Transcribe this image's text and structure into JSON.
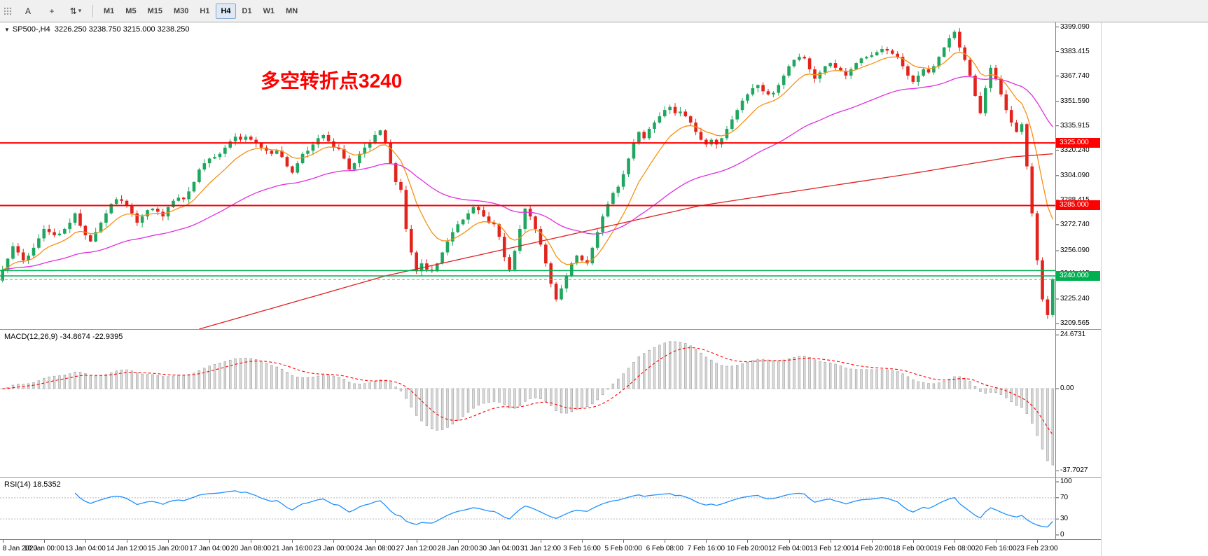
{
  "toolbar": {
    "tool_buttons": [
      {
        "id": "text-tool",
        "label": "A"
      },
      {
        "id": "crosshair-tool",
        "label": "+"
      },
      {
        "id": "objects-tool",
        "label": "⇅",
        "caret": true
      }
    ],
    "timeframes": [
      "M1",
      "M5",
      "M15",
      "M30",
      "H1",
      "H4",
      "D1",
      "W1",
      "MN"
    ],
    "active_timeframe": "H4"
  },
  "icons": {
    "chart_caret": "▼",
    "dropdown_caret": "▾"
  },
  "main_panel": {
    "symbol_label": "SP500-,H4",
    "ohlc_text": "3226.250 3238.750 3215.000 3238.250",
    "annotation_text": "多空转折点3240",
    "axis_labels": [
      "3399.090",
      "3383.415",
      "3367.740",
      "3351.590",
      "3335.915",
      "3320.240",
      "3304.090",
      "3288.415",
      "3272.740",
      "3256.090",
      "3241.415",
      "3225.240",
      "3209.565"
    ],
    "hlines": [
      {
        "price": 3325.0,
        "color": "#ff0000",
        "width": 2,
        "badge": "3325.000"
      },
      {
        "price": 3285.0,
        "color": "#ff0000",
        "width": 2,
        "badge": "3285.000"
      },
      {
        "price": 3243.4,
        "color": "#00b050",
        "width": 1.5
      },
      {
        "price": 3240.0,
        "color": "#00b050",
        "width": 1.5,
        "badge": "3240.000"
      },
      {
        "price": 3237.6,
        "color": "#9a9a9a",
        "width": 1,
        "dash": "4 3"
      }
    ]
  },
  "macd_panel": {
    "title": "MACD(12,26,9) -34.8674 -22.9395",
    "axis_labels": [
      "24.6731",
      "0.00",
      "-37.7027"
    ],
    "range": [
      -40.5,
      27
    ]
  },
  "rsi_panel": {
    "title": "RSI(14) 18.5352",
    "axis_labels": [
      "100",
      "70",
      "30",
      "0"
    ],
    "levels": [
      70,
      30
    ]
  },
  "time_axis": {
    "step_bars": 8,
    "labels": [
      "8 Jan 2020",
      "10 Jan 00:00",
      "13 Jan 04:00",
      "14 Jan 12:00",
      "15 Jan 20:00",
      "17 Jan 04:00",
      "20 Jan 08:00",
      "21 Jan 16:00",
      "23 Jan 00:00",
      "24 Jan 08:00",
      "27 Jan 12:00",
      "28 Jan 20:00",
      "30 Jan 04:00",
      "31 Jan 12:00",
      "3 Feb 16:00",
      "5 Feb 00:00",
      "6 Feb 08:00",
      "7 Feb 16:00",
      "10 Feb 20:00",
      "12 Feb 04:00",
      "13 Feb 12:00",
      "14 Feb 20:00",
      "18 Feb 00:00",
      "19 Feb 08:00",
      "20 Feb 16:00",
      "23 Feb 23:00"
    ]
  },
  "chart_data": {
    "type": "candlestick",
    "symbol": "SP500-",
    "timeframe": "H4",
    "title_ohlc": {
      "open": 3226.25,
      "high": 3238.75,
      "low": 3215.0,
      "close": 3238.25
    },
    "y_range": [
      3206,
      3402
    ],
    "first_open": 3237,
    "closes": [
      3244,
      3251,
      3259,
      3255,
      3250,
      3253,
      3258,
      3264,
      3270,
      3268,
      3266,
      3267,
      3270,
      3274,
      3280,
      3272,
      3266,
      3262,
      3268,
      3274,
      3280,
      3286,
      3289,
      3288,
      3285,
      3280,
      3274,
      3278,
      3282,
      3283,
      3281,
      3278,
      3284,
      3288,
      3290,
      3289,
      3294,
      3300,
      3308,
      3312,
      3315,
      3316,
      3318,
      3322,
      3326,
      3329,
      3327,
      3329,
      3327,
      3325,
      3322,
      3320,
      3318,
      3320,
      3316,
      3310,
      3306,
      3312,
      3318,
      3320,
      3324,
      3328,
      3330,
      3326,
      3322,
      3321,
      3315,
      3308,
      3312,
      3318,
      3322,
      3325,
      3330,
      3333,
      3325,
      3312,
      3300,
      3295,
      3270,
      3255,
      3243,
      3248,
      3244,
      3243,
      3248,
      3255,
      3262,
      3268,
      3273,
      3276,
      3280,
      3284,
      3282,
      3278,
      3274,
      3273,
      3265,
      3252,
      3244,
      3256,
      3270,
      3283,
      3278,
      3270,
      3260,
      3248,
      3235,
      3225,
      3232,
      3240,
      3248,
      3253,
      3250,
      3248,
      3258,
      3268,
      3278,
      3286,
      3293,
      3297,
      3305,
      3315,
      3325,
      3332,
      3328,
      3334,
      3338,
      3342,
      3346,
      3348,
      3344,
      3345,
      3342,
      3338,
      3332,
      3327,
      3324,
      3327,
      3324,
      3328,
      3334,
      3340,
      3346,
      3352,
      3356,
      3360,
      3362,
      3358,
      3356,
      3357,
      3362,
      3368,
      3374,
      3378,
      3380,
      3379,
      3372,
      3366,
      3370,
      3374,
      3376,
      3373,
      3371,
      3368,
      3372,
      3376,
      3379,
      3380,
      3381,
      3383,
      3385,
      3384,
      3382,
      3380,
      3374,
      3368,
      3364,
      3368,
      3372,
      3370,
      3374,
      3380,
      3386,
      3392,
      3396,
      3386,
      3378,
      3368,
      3355,
      3344,
      3360,
      3373,
      3366,
      3356,
      3346,
      3338,
      3332,
      3337,
      3310,
      3280,
      3250,
      3225,
      3215,
      3238
    ],
    "overlays": {
      "ema_fast_period": 10,
      "ema_mid_period": 45,
      "red_ma_anchors": [
        [
          38,
          3206
        ],
        [
          74,
          3240
        ],
        [
          135,
          3285
        ],
        [
          175,
          3305
        ],
        [
          195,
          3316
        ],
        [
          203,
          3318
        ]
      ]
    },
    "hlines": [
      3325.0,
      3285.0,
      3240.0
    ],
    "indicators": {
      "macd": {
        "fast": 12,
        "slow": 26,
        "signal": 9,
        "last_macd": -34.8674,
        "last_signal": -22.9395
      },
      "rsi": {
        "period": 14,
        "last_value": 18.5352
      }
    }
  },
  "colors": {
    "up": "#1fa75f",
    "down": "#e3241d",
    "ma_fast": "#f59116",
    "ma_mid": "#df2fdf",
    "ma_slow": "#dd2222",
    "macd_hist_fill": "#dadada",
    "macd_hist_stroke": "#9b9b9b",
    "macd_signal": "#ff0000",
    "rsi_line": "#1e90ff",
    "level_line": "#b8b8b8",
    "annotation": "#ff0000",
    "badge_text": "#ffffff"
  }
}
